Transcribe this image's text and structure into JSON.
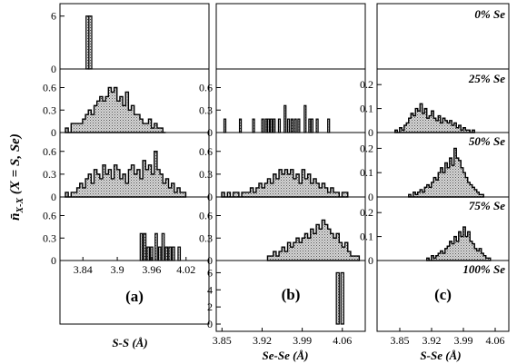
{
  "chart_data": {
    "type": "bar",
    "ylabel_main": "n̄",
    "ylabel_sub": "X-X",
    "ylabel_tail": " (X = S, Se)",
    "concentration_labels": [
      "0% Se",
      "25% Se",
      "50% Se",
      "75% Se",
      "100% Se"
    ],
    "columns": [
      {
        "panel_label": "(a)",
        "xlabel": "S-S (Å)",
        "xlim": [
          3.8,
          4.06
        ],
        "xticks": [
          "3.84",
          "3.9",
          "3.96",
          "4.02"
        ],
        "panels": [
          {
            "row": 0,
            "ylim": [
              0,
              7
            ],
            "yticks": [
              "0",
              "6"
            ],
            "style": "bars",
            "bin_width": 0.005,
            "x": [
              3.848,
              3.853
            ],
            "values": [
              6,
              6
            ]
          },
          {
            "row": 1,
            "ylim": [
              0,
              0.8
            ],
            "yticks": [
              "0",
              "0.3",
              "0.6"
            ],
            "style": "filled",
            "bin_width": 0.005,
            "x": [
              3.812,
              3.817,
              3.822,
              3.827,
              3.832,
              3.837,
              3.842,
              3.847,
              3.852,
              3.857,
              3.862,
              3.867,
              3.872,
              3.877,
              3.882,
              3.887,
              3.892,
              3.897,
              3.902,
              3.907,
              3.912,
              3.917,
              3.922,
              3.927,
              3.932,
              3.937,
              3.942,
              3.947,
              3.952,
              3.957,
              3.962,
              3.967,
              3.972,
              3.977,
              3.982
            ],
            "values": [
              0.06,
              0.0,
              0.12,
              0.12,
              0.12,
              0.12,
              0.18,
              0.24,
              0.3,
              0.24,
              0.36,
              0.42,
              0.48,
              0.42,
              0.48,
              0.6,
              0.54,
              0.6,
              0.42,
              0.48,
              0.36,
              0.54,
              0.3,
              0.36,
              0.24,
              0.24,
              0.18,
              0.12,
              0.12,
              0.18,
              0.06,
              0.12,
              0.06,
              0.06,
              0.0
            ]
          },
          {
            "row": 2,
            "ylim": [
              0,
              0.8
            ],
            "yticks": [
              "0",
              "0.3",
              "0.6"
            ],
            "style": "filled",
            "bin_width": 0.005,
            "x": [
              3.812,
              3.817,
              3.822,
              3.827,
              3.832,
              3.837,
              3.842,
              3.847,
              3.852,
              3.857,
              3.862,
              3.867,
              3.872,
              3.877,
              3.882,
              3.887,
              3.892,
              3.897,
              3.902,
              3.907,
              3.912,
              3.917,
              3.922,
              3.927,
              3.932,
              3.937,
              3.942,
              3.947,
              3.952,
              3.957,
              3.962,
              3.967,
              3.972,
              3.977,
              3.982,
              3.987,
              3.992,
              3.997,
              4.002,
              4.007,
              4.012,
              4.017
            ],
            "values": [
              0.06,
              0.0,
              0.06,
              0.06,
              0.12,
              0.18,
              0.12,
              0.24,
              0.3,
              0.18,
              0.36,
              0.3,
              0.24,
              0.42,
              0.3,
              0.36,
              0.24,
              0.42,
              0.36,
              0.24,
              0.3,
              0.18,
              0.36,
              0.42,
              0.3,
              0.36,
              0.24,
              0.48,
              0.36,
              0.42,
              0.3,
              0.6,
              0.36,
              0.3,
              0.18,
              0.24,
              0.12,
              0.18,
              0.06,
              0.12,
              0.06,
              0.06
            ]
          },
          {
            "row": 3,
            "ylim": [
              0,
              0.8
            ],
            "yticks": [
              "0",
              "0.3",
              "0.6"
            ],
            "style": "bars",
            "bin_width": 0.004,
            "x": [
              3.942,
              3.948,
              3.954,
              3.96,
              3.968,
              3.974,
              3.98,
              3.986,
              3.992,
              3.998,
              4.008
            ],
            "values": [
              0.36,
              0.36,
              0.18,
              0.18,
              0.36,
              0.18,
              0.36,
              0.18,
              0.18,
              0.18,
              0.18
            ]
          },
          {
            "row": 4,
            "empty": true
          }
        ]
      },
      {
        "panel_label": "(b)",
        "xlabel": "Se-Se (Å)",
        "xlim": [
          3.84,
          4.1
        ],
        "xticks": [
          "3.85",
          "3.92",
          "3.99",
          "4.06"
        ],
        "panels": [
          {
            "row": 0,
            "empty": true
          },
          {
            "row": 1,
            "ylim": [
              0,
              0.8
            ],
            "yticks": [
              "0",
              "0.3",
              "0.6"
            ],
            "style": "bars",
            "bin_width": 0.003,
            "x": [
              3.855,
              3.882,
              3.905,
              3.921,
              3.927,
              3.931,
              3.936,
              3.941,
              3.95,
              3.96,
              3.966,
              3.972,
              3.978,
              3.984,
              3.995,
              4.003,
              4.007,
              4.016,
              4.036
            ],
            "values": [
              0.18,
              0.18,
              0.18,
              0.18,
              0.18,
              0.18,
              0.18,
              0.18,
              0.18,
              0.36,
              0.18,
              0.18,
              0.18,
              0.18,
              0.36,
              0.18,
              0.18,
              0.18,
              0.18
            ]
          },
          {
            "row": 2,
            "ylim": [
              0,
              0.8
            ],
            "yticks": [
              "0",
              "0.3",
              "0.6"
            ],
            "style": "filled",
            "bin_width": 0.005,
            "x": [
              3.852,
              3.857,
              3.862,
              3.867,
              3.872,
              3.877,
              3.882,
              3.887,
              3.892,
              3.897,
              3.902,
              3.907,
              3.912,
              3.917,
              3.922,
              3.927,
              3.932,
              3.937,
              3.942,
              3.947,
              3.952,
              3.957,
              3.962,
              3.967,
              3.972,
              3.977,
              3.982,
              3.987,
              3.992,
              3.997,
              4.002,
              4.007,
              4.012,
              4.017,
              4.022,
              4.027,
              4.032,
              4.037,
              4.042,
              4.047,
              4.052,
              4.057,
              4.062,
              4.067
            ],
            "values": [
              0.06,
              0.0,
              0.06,
              0.0,
              0.06,
              0.06,
              0.0,
              0.06,
              0.06,
              0.06,
              0.12,
              0.06,
              0.12,
              0.18,
              0.12,
              0.18,
              0.24,
              0.18,
              0.3,
              0.24,
              0.36,
              0.3,
              0.36,
              0.3,
              0.36,
              0.24,
              0.3,
              0.18,
              0.36,
              0.24,
              0.3,
              0.18,
              0.24,
              0.18,
              0.12,
              0.18,
              0.12,
              0.06,
              0.12,
              0.06,
              0.06,
              0.0,
              0.06,
              0.06
            ]
          },
          {
            "row": 3,
            "ylim": [
              0,
              0.8
            ],
            "yticks": [
              "0",
              "0.3",
              "0.6"
            ],
            "style": "filled",
            "bin_width": 0.005,
            "x": [
              3.932,
              3.937,
              3.942,
              3.947,
              3.952,
              3.957,
              3.962,
              3.967,
              3.972,
              3.977,
              3.982,
              3.987,
              3.992,
              3.997,
              4.002,
              4.007,
              4.012,
              4.017,
              4.022,
              4.027,
              4.032,
              4.037,
              4.042,
              4.047,
              4.052,
              4.057,
              4.062,
              4.067,
              4.072,
              4.077,
              4.082,
              4.087
            ],
            "values": [
              0.06,
              0.06,
              0.12,
              0.06,
              0.12,
              0.18,
              0.12,
              0.24,
              0.18,
              0.24,
              0.3,
              0.24,
              0.3,
              0.36,
              0.3,
              0.42,
              0.36,
              0.48,
              0.42,
              0.54,
              0.48,
              0.42,
              0.36,
              0.3,
              0.36,
              0.24,
              0.18,
              0.24,
              0.12,
              0.06,
              0.06,
              0.06
            ]
          },
          {
            "row": 4,
            "ylim": [
              0,
              7
            ],
            "yticks": [
              "0",
              "2",
              "4",
              "6"
            ],
            "style": "bars",
            "bin_width": 0.005,
            "x": [
              4.052,
              4.06
            ],
            "values": [
              6,
              6
            ]
          }
        ]
      },
      {
        "panel_label": "(c)",
        "xlabel": "S-Se (Å)",
        "xlim": [
          3.8,
          4.09
        ],
        "xticks": [
          "3.85",
          "3.92",
          "3.99",
          "4.06"
        ],
        "panels": [
          {
            "row": 0,
            "empty": true
          },
          {
            "row": 1,
            "ylim": [
              0,
              0.25
            ],
            "yticks": [
              "0",
              "0.1",
              "0.2"
            ],
            "style": "filled",
            "bin_width": 0.005,
            "x": [
              3.842,
              3.847,
              3.852,
              3.857,
              3.862,
              3.867,
              3.872,
              3.877,
              3.882,
              3.887,
              3.892,
              3.897,
              3.902,
              3.907,
              3.912,
              3.917,
              3.922,
              3.927,
              3.932,
              3.937,
              3.942,
              3.947,
              3.952,
              3.957,
              3.962,
              3.967,
              3.972,
              3.977,
              3.982,
              3.987,
              3.992,
              3.997,
              4.002,
              4.007,
              4.012
            ],
            "values": [
              0.01,
              0.0,
              0.02,
              0.01,
              0.03,
              0.04,
              0.06,
              0.08,
              0.07,
              0.1,
              0.09,
              0.12,
              0.08,
              0.1,
              0.06,
              0.07,
              0.09,
              0.06,
              0.05,
              0.07,
              0.04,
              0.06,
              0.05,
              0.04,
              0.05,
              0.03,
              0.04,
              0.02,
              0.03,
              0.01,
              0.02,
              0.01,
              0.01,
              0.0,
              0.01
            ]
          },
          {
            "row": 2,
            "ylim": [
              0,
              0.25
            ],
            "yticks": [
              "0",
              "0.1",
              "0.2"
            ],
            "style": "filled",
            "bin_width": 0.005,
            "x": [
              3.872,
              3.877,
              3.882,
              3.887,
              3.892,
              3.897,
              3.902,
              3.907,
              3.912,
              3.917,
              3.922,
              3.927,
              3.932,
              3.937,
              3.942,
              3.947,
              3.952,
              3.957,
              3.962,
              3.967,
              3.972,
              3.977,
              3.982,
              3.987,
              3.992,
              3.997,
              4.002,
              4.007,
              4.012,
              4.017,
              4.022,
              4.027,
              4.032
            ],
            "values": [
              0.01,
              0.0,
              0.02,
              0.01,
              0.02,
              0.03,
              0.02,
              0.04,
              0.05,
              0.04,
              0.06,
              0.08,
              0.07,
              0.1,
              0.12,
              0.1,
              0.14,
              0.12,
              0.16,
              0.13,
              0.2,
              0.16,
              0.15,
              0.12,
              0.1,
              0.08,
              0.06,
              0.05,
              0.04,
              0.03,
              0.02,
              0.01,
              0.01
            ]
          },
          {
            "row": 3,
            "ylim": [
              0,
              0.25
            ],
            "yticks": [
              "0",
              "0.1",
              "0.2"
            ],
            "style": "filled",
            "bin_width": 0.005,
            "x": [
              3.912,
              3.917,
              3.922,
              3.927,
              3.932,
              3.937,
              3.942,
              3.947,
              3.952,
              3.957,
              3.962,
              3.967,
              3.972,
              3.977,
              3.982,
              3.987,
              3.992,
              3.997,
              4.002,
              4.007,
              4.012,
              4.017,
              4.022,
              4.027,
              4.032,
              4.037,
              4.042,
              4.047
            ],
            "values": [
              0.01,
              0.0,
              0.02,
              0.01,
              0.02,
              0.03,
              0.04,
              0.03,
              0.05,
              0.06,
              0.08,
              0.07,
              0.1,
              0.08,
              0.12,
              0.1,
              0.14,
              0.1,
              0.12,
              0.08,
              0.07,
              0.05,
              0.04,
              0.05,
              0.03,
              0.02,
              0.01,
              0.01
            ]
          },
          {
            "row": 4,
            "empty": true
          }
        ]
      }
    ]
  }
}
